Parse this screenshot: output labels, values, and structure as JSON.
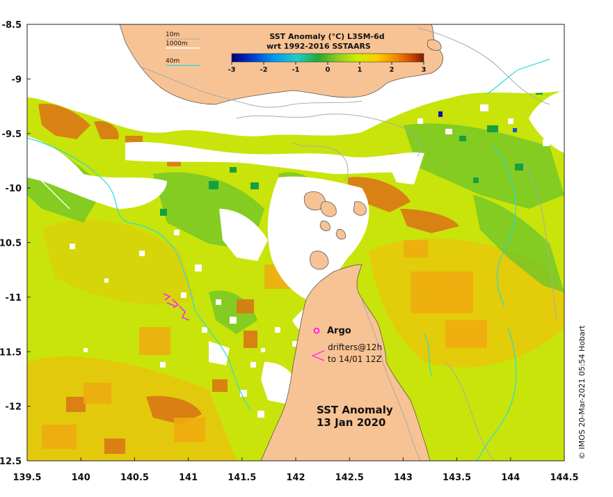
{
  "map": {
    "title_line1": "SST Anomaly",
    "title_line2": "13 Jan 2020",
    "credit": "© IMOS 20-Mar-2021 05:54 Hobart",
    "x_ticks": [
      "139.5",
      "140",
      "140.5",
      "141",
      "141.5",
      "142",
      "142.5",
      "143",
      "143.5",
      "144",
      "144.5"
    ],
    "y_ticks": [
      "-8.5",
      "-9",
      "-9.5",
      "-10",
      "-10.5",
      "-11",
      "-11.5",
      "-12",
      "-12.5"
    ],
    "lon_range": [
      139.5,
      144.5
    ],
    "lat_range": [
      -12.5,
      -8.5
    ]
  },
  "colorbar": {
    "title_line1": "SST Anomaly (°C) L3SM-6d",
    "title_line2": "wrt 1992-2016 SSTAARS",
    "ticks": [
      "-3",
      "-2",
      "-1",
      "0",
      "1",
      "2",
      "3"
    ],
    "range": [
      -3,
      3
    ],
    "colors": [
      "#00007a",
      "#0033cc",
      "#0099ee",
      "#22cccc",
      "#22aa33",
      "#66cc22",
      "#ccee00",
      "#ffcc00",
      "#ee8800",
      "#cc4400",
      "#7a1a00"
    ]
  },
  "legend": {
    "depth_10m": "10m",
    "depth_1000m": "1000m",
    "depth_40m": "40m",
    "argo": "Argo",
    "drifters_line1": "drifters@12h",
    "drifters_line2": "to 14/01 12Z"
  },
  "colors": {
    "land": "#f8c394",
    "ocean_base": "#c9e40a",
    "contour_10m": "#b0b0b0",
    "contour_1000m": "#ffffff",
    "contour_40m": "#22dddd",
    "argo": "#ff00ff",
    "drifter": "#ff22ff"
  }
}
